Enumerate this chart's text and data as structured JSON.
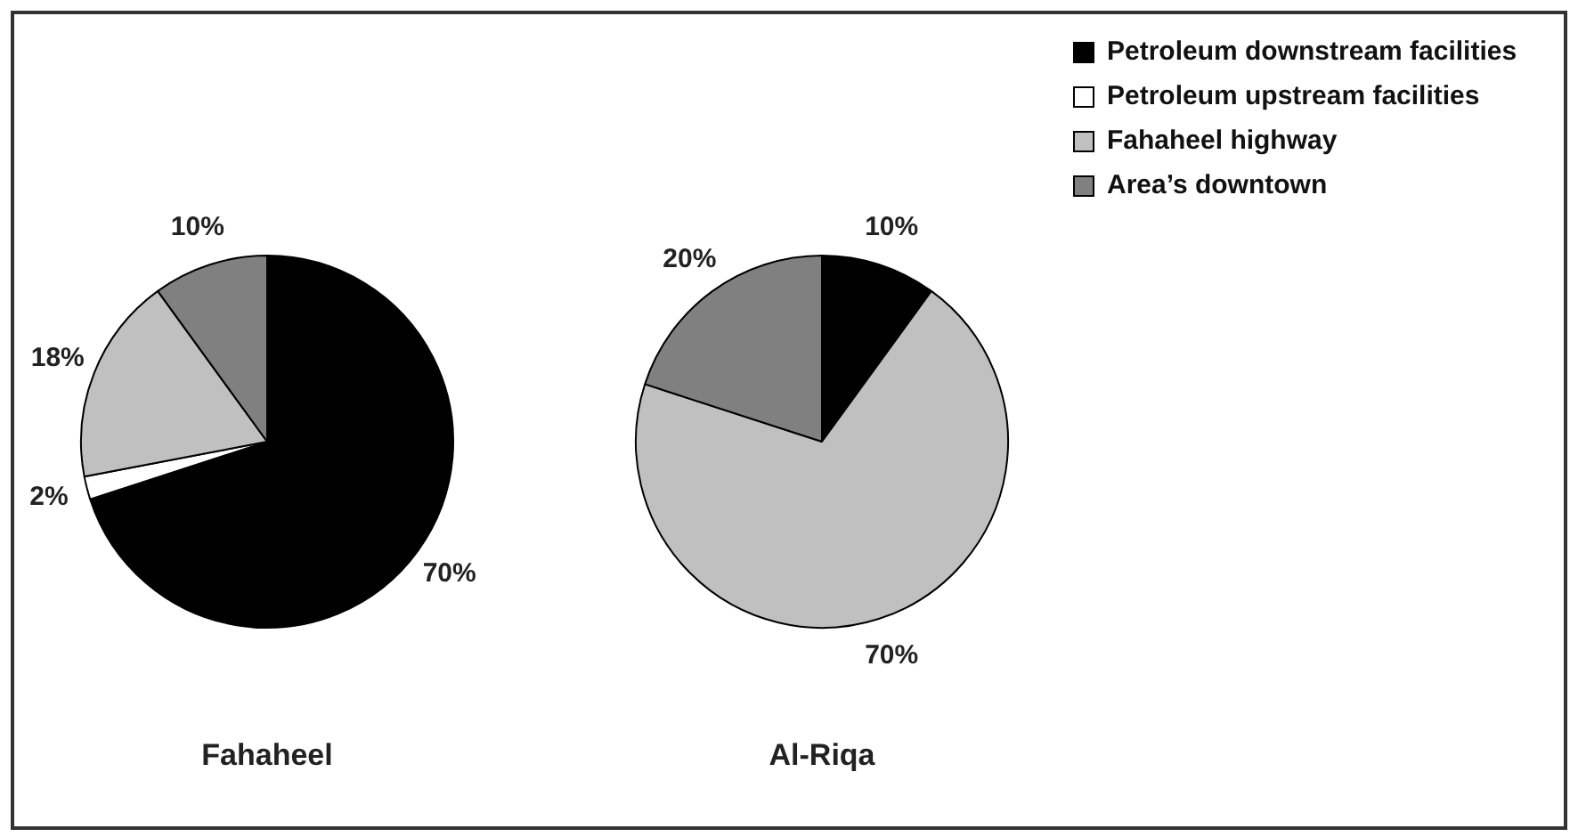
{
  "chart_data": [
    {
      "type": "pie",
      "title": "Fahaheel",
      "categories": [
        null,
        null,
        null,
        null
      ],
      "values": [
        70,
        2,
        18,
        10
      ],
      "value_labels": [
        "70%",
        "2%",
        "18%",
        "10%"
      ],
      "colors": [
        "#000000",
        "#ffffff",
        "#c0c0c0",
        "#808080"
      ],
      "legend": false
    },
    {
      "type": "pie",
      "title": "Al-Riqa",
      "categories": [
        "Petroleum downstream facilities",
        "Petroleum upstream facilities",
        "Fahaheel highway",
        "Area’s downtown"
      ],
      "values": [
        10,
        0,
        70,
        20
      ],
      "value_labels": [
        "10%",
        null,
        "70%",
        "20%"
      ],
      "colors": [
        "#000000",
        "#ffffff",
        "#c0c0c0",
        "#808080"
      ],
      "legend": "top right"
    }
  ]
}
